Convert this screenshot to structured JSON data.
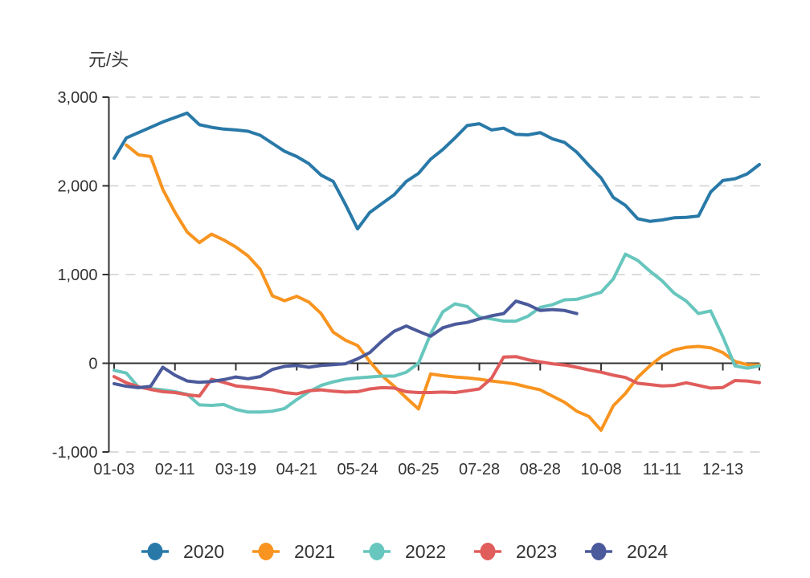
{
  "chart_data": {
    "type": "line",
    "title": "",
    "unit_label": "元/头",
    "legend_position": "bottom",
    "x_axis": {
      "tick_labels": [
        "01-03",
        "02-11",
        "03-19",
        "04-21",
        "05-24",
        "06-25",
        "07-28",
        "08-28",
        "10-08",
        "11-11",
        "12-13"
      ],
      "tick_weeks": [
        0,
        5,
        10,
        15,
        20,
        25,
        30,
        35,
        40,
        45,
        50
      ],
      "end_tick_week": 53,
      "total_weeks": 54
    },
    "y_axis": {
      "ticks": [
        3000,
        2000,
        1000,
        0,
        -1000
      ],
      "tick_labels": [
        "3,000",
        "2,000",
        "1,000",
        "0",
        "-1,000"
      ],
      "range": [
        -1000,
        3000
      ],
      "grid": "dashed"
    },
    "series": [
      {
        "name": "2020",
        "color": "#2979A8",
        "values": [
          2310,
          2540,
          2600,
          2660,
          2720,
          2770,
          2820,
          2690,
          2660,
          2640,
          2630,
          2615,
          2570,
          2480,
          2390,
          2330,
          2250,
          2120,
          2050,
          1790,
          1515,
          1700,
          1800,
          1900,
          2050,
          2140,
          2300,
          2410,
          2540,
          2680,
          2700,
          2630,
          2650,
          2580,
          2575,
          2600,
          2530,
          2490,
          2380,
          2230,
          2090,
          1870,
          1780,
          1630,
          1600,
          1615,
          1640,
          1645,
          1660,
          1930,
          2060,
          2080,
          2135,
          2240
        ]
      },
      {
        "name": "2021",
        "color": "#F8941F",
        "values": [
          null,
          2460,
          2350,
          2330,
          1960,
          1700,
          1480,
          1360,
          1455,
          1390,
          1310,
          1210,
          1060,
          760,
          705,
          755,
          690,
          560,
          350,
          260,
          200,
          20,
          -140,
          -260,
          -390,
          -515,
          -120,
          -140,
          -155,
          -165,
          -180,
          -200,
          -215,
          -235,
          -270,
          -300,
          -370,
          -440,
          -540,
          -600,
          -755,
          -480,
          -340,
          -160,
          -30,
          80,
          150,
          180,
          190,
          175,
          120,
          20,
          -15,
          -20
        ]
      },
      {
        "name": "2022",
        "color": "#67C6BD",
        "values": [
          -80,
          -110,
          -270,
          -285,
          -300,
          -320,
          -350,
          -470,
          -475,
          -465,
          -520,
          -550,
          -550,
          -540,
          -510,
          -410,
          -320,
          -250,
          -210,
          -180,
          -165,
          -155,
          -145,
          -145,
          -100,
          0,
          330,
          580,
          670,
          640,
          520,
          500,
          475,
          475,
          530,
          630,
          660,
          715,
          720,
          760,
          800,
          950,
          1230,
          1160,
          1040,
          930,
          790,
          700,
          560,
          590,
          300,
          -30,
          -55,
          -30
        ]
      },
      {
        "name": "2023",
        "color": "#E05D5C",
        "values": [
          -150,
          -220,
          -265,
          -295,
          -320,
          -330,
          -355,
          -370,
          -180,
          -215,
          -255,
          -270,
          -285,
          -300,
          -330,
          -345,
          -310,
          -300,
          -315,
          -325,
          -320,
          -290,
          -275,
          -280,
          -320,
          -330,
          -330,
          -325,
          -330,
          -310,
          -290,
          -170,
          70,
          75,
          40,
          15,
          -5,
          -20,
          -45,
          -75,
          -100,
          -135,
          -160,
          -225,
          -240,
          -255,
          -250,
          -220,
          -250,
          -280,
          -273,
          -195,
          -200,
          -218
        ]
      },
      {
        "name": "2024",
        "color": "#4B5A9B",
        "values": [
          -230,
          -260,
          -275,
          -260,
          -45,
          -135,
          -200,
          -215,
          -205,
          -185,
          -155,
          -175,
          -150,
          -70,
          -35,
          -25,
          -45,
          -25,
          -15,
          -5,
          50,
          120,
          250,
          360,
          420,
          360,
          305,
          400,
          440,
          460,
          500,
          535,
          560,
          700,
          660,
          595,
          605,
          595,
          560,
          null,
          null,
          null,
          null,
          null,
          null,
          null,
          null,
          null,
          null,
          null,
          null,
          null,
          null,
          null
        ]
      }
    ]
  },
  "legend": {
    "items": [
      {
        "label": "2020",
        "color": "#2979A8"
      },
      {
        "label": "2021",
        "color": "#F8941F"
      },
      {
        "label": "2022",
        "color": "#67C6BD"
      },
      {
        "label": "2023",
        "color": "#E05D5C"
      },
      {
        "label": "2024",
        "color": "#4B5A9B"
      }
    ]
  },
  "style": {
    "axis_color": "#333333",
    "grid_color": "#d6d6d6",
    "text_color": "#333333",
    "background": "#ffffff"
  }
}
